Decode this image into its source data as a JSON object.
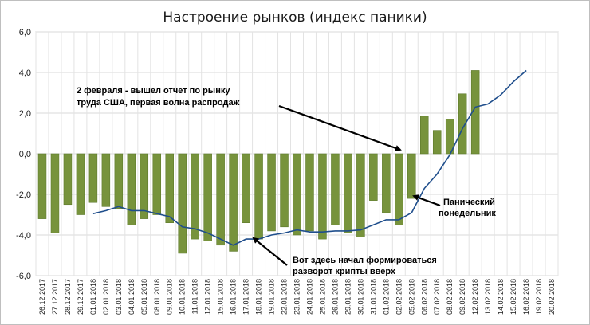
{
  "chart_data": {
    "type": "bar",
    "title": "Настроение рынков (индекс паники)",
    "xlabel": "",
    "ylabel": "",
    "ylim": [
      -6,
      6
    ],
    "yticks": [
      "6,0",
      "4,0",
      "2,0",
      "0,0",
      "-2,0",
      "-4,0",
      "-6,0"
    ],
    "ytick_values": [
      6,
      4,
      2,
      0,
      -2,
      -4,
      -6
    ],
    "grid": true,
    "legend": "none",
    "categories": [
      "26.12.2017",
      "27.12.2017",
      "28.12.2017",
      "29.12.2017",
      "01.01.2018",
      "02.01.2018",
      "03.01.2018",
      "04.01.2018",
      "05.01.2018",
      "08.01.2018",
      "09.01.2018",
      "10.01.2018",
      "11.01.2018",
      "12.01.2018",
      "15.01.2018",
      "16.01.2018",
      "17.01.2018",
      "18.01.2018",
      "19.01.2018",
      "22.01.2018",
      "23.01.2018",
      "24.01.2018",
      "25.01.2018",
      "26.01.2018",
      "29.01.2018",
      "30.01.2018",
      "31.01.2018",
      "01.02.2018",
      "02.02.2018",
      "05.02.2018",
      "06.02.2018",
      "07.02.2018",
      "08.02.2018",
      "09.02.2018",
      "12.02.2018",
      "13.02.2018",
      "14.02.2018",
      "15.02.2018",
      "16.02.2018",
      "19.02.2018",
      "20.02.2018"
    ],
    "series": [
      {
        "type": "bar",
        "color": "#77933c",
        "values": [
          -3.2,
          -3.9,
          -2.5,
          -3.0,
          -2.4,
          -2.6,
          -2.7,
          -3.5,
          -3.2,
          -3.0,
          -3.4,
          -4.9,
          -4.2,
          -4.3,
          -4.5,
          -4.8,
          -3.4,
          -4.2,
          -3.8,
          -3.6,
          -4.0,
          -3.8,
          -4.2,
          -3.5,
          -3.9,
          -4.1,
          -2.3,
          -2.9,
          -3.5,
          -2.2,
          1.85,
          1.15,
          1.7,
          2.95,
          4.1,
          null,
          null,
          null,
          null,
          null,
          null
        ]
      },
      {
        "type": "line",
        "color": "#1f4e8c",
        "values": [
          null,
          null,
          null,
          null,
          -2.95,
          -2.8,
          -2.6,
          -2.8,
          -2.8,
          -2.95,
          -3.1,
          -3.6,
          -3.7,
          -3.9,
          -4.2,
          -4.5,
          -4.2,
          -4.2,
          -4.0,
          -3.9,
          -3.75,
          -3.85,
          -3.85,
          -3.8,
          -3.8,
          -3.75,
          -3.5,
          -3.25,
          -3.25,
          -2.9,
          -1.7,
          -1.0,
          -0.05,
          1.25,
          2.3,
          2.45,
          2.9,
          3.55,
          4.1,
          null,
          null
        ]
      }
    ],
    "annotations": [
      {
        "text": "2 февраля - вышел отчет по рынку",
        "target": "02.02.2018"
      },
      {
        "text": "труда США, первая волна распродаж",
        "target": "02.02.2018"
      },
      {
        "text": "Панический",
        "target": "05.02.2018"
      },
      {
        "text": "понедельник",
        "target": "05.02.2018"
      },
      {
        "text": "Вот здесь начал формироваться",
        "target": "16.01.2018"
      },
      {
        "text": "разворот крипты вверх",
        "target": "16.01.2018"
      }
    ]
  }
}
